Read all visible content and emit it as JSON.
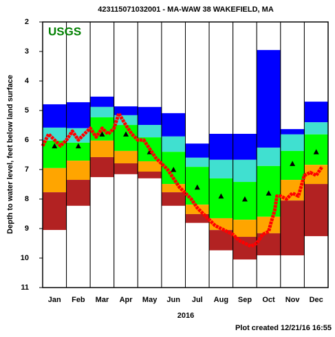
{
  "chart_data": {
    "type": "percentile-bands",
    "title": "423115071032001 - MA-WAW 38 WAKEFIELD, MA",
    "logo": "USGS",
    "y_label": "Depth to water level, feet below land surface",
    "x_label": "2016",
    "footer": "Plot created 12/21/16 16:55",
    "categories": [
      "Jan",
      "Feb",
      "Mar",
      "Apr",
      "May",
      "Jun",
      "Jul",
      "Aug",
      "Sep",
      "Oct",
      "Nov",
      "Dec"
    ],
    "ylim": [
      11,
      2
    ],
    "yticks": [
      2,
      3,
      4,
      5,
      6,
      7,
      8,
      9,
      10,
      11
    ],
    "series": [
      {
        "color": "#0000ff",
        "values": [
          4.79,
          4.72,
          4.53,
          4.86,
          4.88,
          5.09,
          6.12,
          5.79,
          5.79,
          2.95,
          5.63,
          4.7
        ]
      },
      {
        "color": "#40e0d0",
        "values": [
          5.58,
          5.6,
          4.88,
          5.16,
          5.49,
          5.88,
          6.6,
          6.67,
          6.67,
          6.26,
          5.81,
          5.4
        ]
      },
      {
        "color": "#00ff00",
        "values": [
          6.02,
          6.09,
          5.23,
          5.49,
          5.91,
          6.4,
          6.91,
          7.3,
          7.42,
          6.88,
          6.37,
          5.81
        ]
      },
      {
        "color": "#ffa500",
        "values": [
          6.95,
          6.7,
          6.02,
          6.37,
          6.72,
          7.49,
          8.19,
          8.65,
          8.7,
          8.6,
          7.35,
          6.84
        ]
      },
      {
        "color": "#b22222",
        "values": [
          7.77,
          7.35,
          6.58,
          6.79,
          7.07,
          7.77,
          8.51,
          9.05,
          9.28,
          9.16,
          8.05,
          7.49
        ]
      },
      {
        "color": "#ffffff",
        "values": [
          9.05,
          8.23,
          7.26,
          7.16,
          7.3,
          8.23,
          8.81,
          9.74,
          10.05,
          9.91,
          9.91,
          9.26
        ]
      }
    ],
    "medians": [
      6.2,
      6.2,
      5.8,
      5.8,
      6.4,
      7.0,
      7.6,
      7.9,
      8.0,
      7.8,
      6.8,
      6.4
    ],
    "median_color": "#000000",
    "line": {
      "color": "#ff0000",
      "xlim": [
        0,
        12
      ],
      "x": [
        0,
        0.25,
        0.5,
        0.75,
        1,
        1.25,
        1.5,
        1.75,
        2,
        2.25,
        2.5,
        2.75,
        3,
        3.2,
        3.5,
        3.75,
        4,
        4.25,
        4.5,
        4.75,
        5,
        5.25,
        5.5,
        5.75,
        6,
        6.25,
        6.5,
        6.75,
        7,
        7.25,
        7.5,
        7.75,
        8,
        8.25,
        8.5,
        8.75,
        9,
        9.25,
        9.5,
        9.6,
        9.75,
        9.85,
        10,
        10.25,
        10.5,
        10.75,
        11,
        11.25,
        11.5,
        11.75
      ],
      "values": [
        6.2,
        5.8,
        6.0,
        6.2,
        6.0,
        5.7,
        6.0,
        5.8,
        5.6,
        5.9,
        5.6,
        5.8,
        5.6,
        5.1,
        5.5,
        5.8,
        6.0,
        6.0,
        6.3,
        6.6,
        6.8,
        7.0,
        7.3,
        7.6,
        7.8,
        8.0,
        8.3,
        8.5,
        8.7,
        8.9,
        9.0,
        9.1,
        9.2,
        9.4,
        9.5,
        9.6,
        9.5,
        9.2,
        9.1,
        8.8,
        8.4,
        7.9,
        7.9,
        8.0,
        7.8,
        7.9,
        7.2,
        7.1,
        7.2,
        6.9
      ]
    }
  }
}
